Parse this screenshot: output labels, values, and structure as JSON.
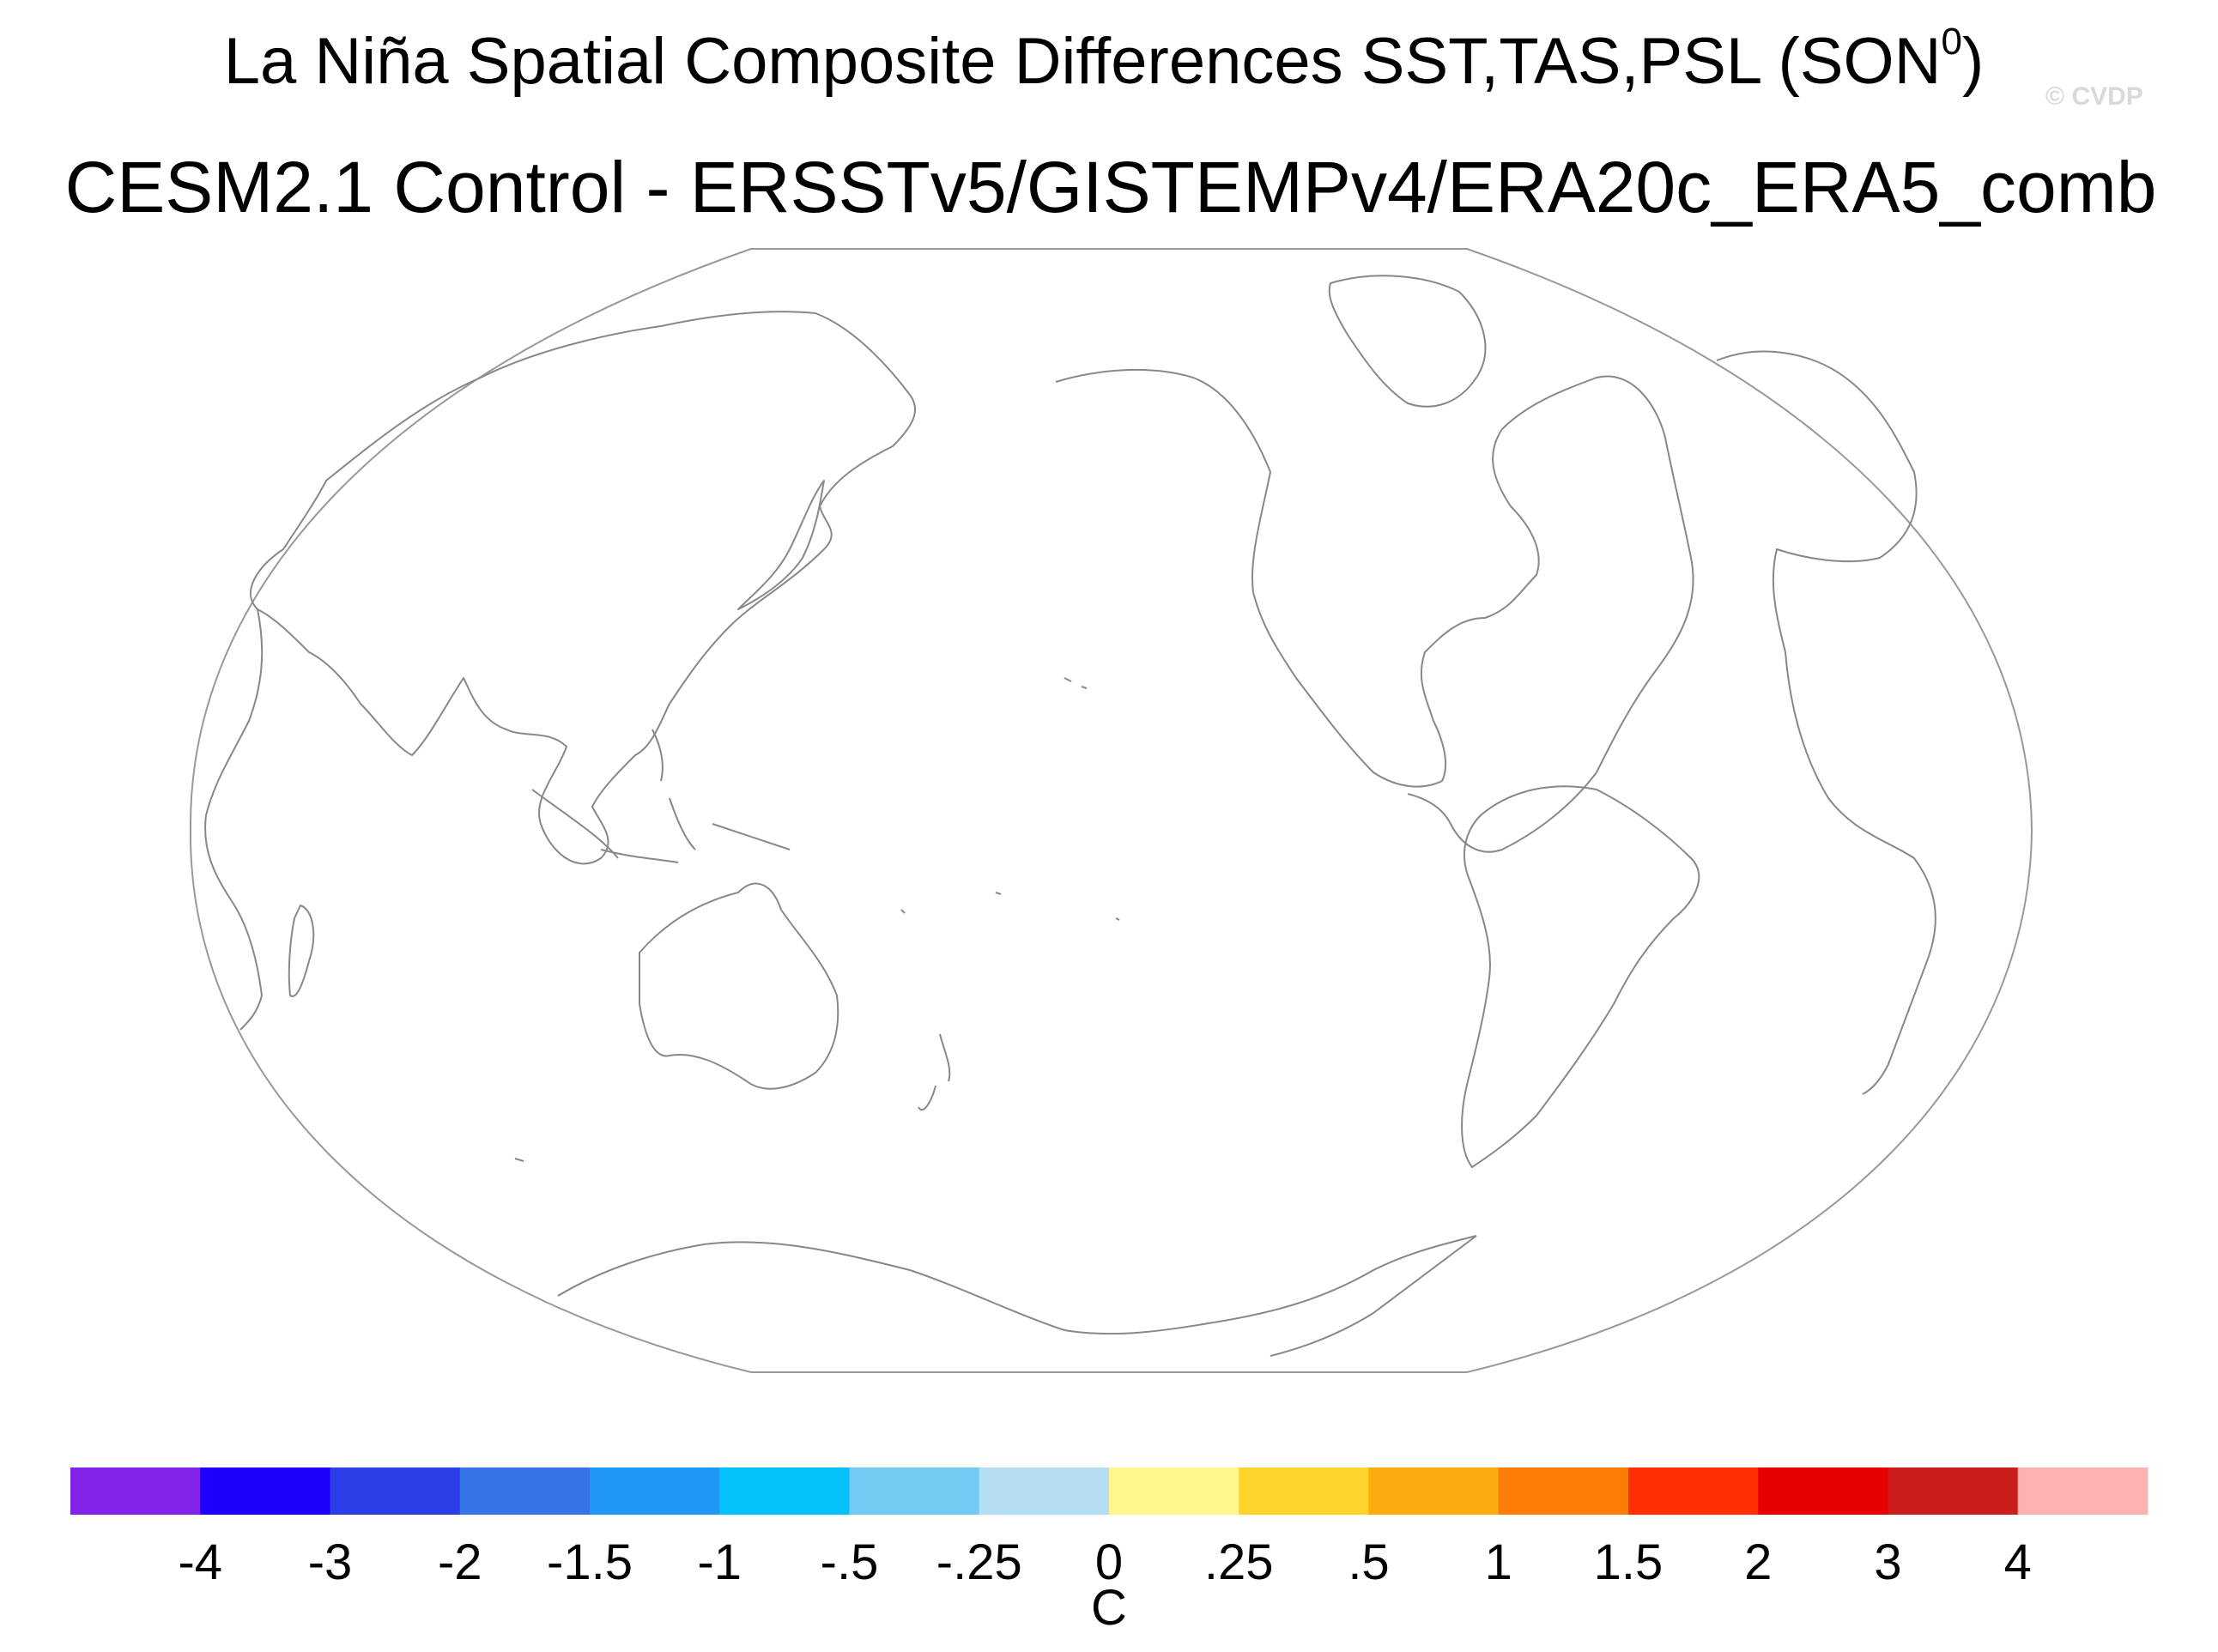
{
  "title": {
    "line1_prefix": "La Niña Spatial Composite Differences SST,TAS,PSL (SON",
    "line1_sup": "0",
    "line1_suffix": ")",
    "line2": "CESM2.1 Control - ERSSTv5/GISTEMPv4/ERA20c_ERA5_comb"
  },
  "watermark": "© CVDP",
  "map": {
    "projection": "robinson",
    "central_longitude": 180,
    "coastline_color": "#888888",
    "boundary_color": "#999999",
    "field_shading": "none"
  },
  "colorbar": {
    "colors": [
      "#8223ea",
      "#1c00fb",
      "#2a3fe8",
      "#3574e8",
      "#1f98f5",
      "#05c1fa",
      "#74c9f2",
      "#b4dff2",
      "#fff68c",
      "#fdd32c",
      "#fdaa0d",
      "#fd7c07",
      "#fd2f03",
      "#e60000",
      "#cc1d1d",
      "#fdb1b1"
    ],
    "labels": [
      "-4",
      "-3",
      "-2",
      "-1.5",
      "-1",
      "-.5",
      "-.25",
      "0",
      ".25",
      ".5",
      "1",
      "1.5",
      "2",
      "3",
      "4"
    ],
    "units": "C"
  }
}
